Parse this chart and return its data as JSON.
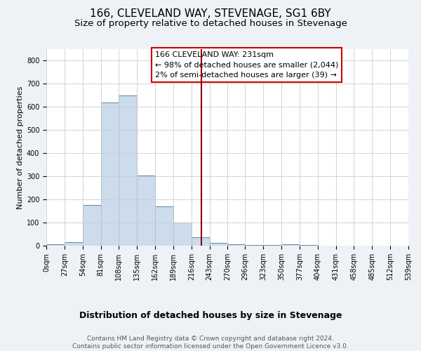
{
  "title": "166, CLEVELAND WAY, STEVENAGE, SG1 6BY",
  "subtitle": "Size of property relative to detached houses in Stevenage",
  "xlabel": "Distribution of detached houses by size in Stevenage",
  "ylabel": "Number of detached properties",
  "bin_edges": [
    0,
    27,
    54,
    81,
    108,
    135,
    162,
    189,
    216,
    243,
    270,
    296,
    323,
    350,
    377,
    404,
    431,
    458,
    485,
    512,
    539
  ],
  "bar_heights": [
    5,
    15,
    175,
    620,
    650,
    305,
    170,
    100,
    35,
    12,
    6,
    4,
    2,
    7,
    2,
    1,
    1,
    1,
    0,
    0
  ],
  "bar_facecolor": "#ccdcec",
  "bar_edgecolor": "#5588aa",
  "vline_x": 231,
  "vline_color": "#8b0000",
  "annotation_text_line1": "166 CLEVELAND WAY: 231sqm",
  "annotation_text_line2": "← 98% of detached houses are smaller (2,044)",
  "annotation_text_line3": "2% of semi-detached houses are larger (39) →",
  "annotation_box_edgecolor": "#cc0000",
  "footer_line1": "Contains HM Land Registry data © Crown copyright and database right 2024.",
  "footer_line2": "Contains public sector information licensed under the Open Government Licence v3.0.",
  "ylim": [
    0,
    850
  ],
  "yticks": [
    0,
    100,
    200,
    300,
    400,
    500,
    600,
    700,
    800
  ],
  "background_color": "#eef2f7",
  "plot_background_color": "#ffffff",
  "title_fontsize": 11,
  "subtitle_fontsize": 9.5,
  "xlabel_fontsize": 9,
  "ylabel_fontsize": 8,
  "annotation_fontsize": 8,
  "footer_fontsize": 6.5,
  "tick_fontsize": 7
}
